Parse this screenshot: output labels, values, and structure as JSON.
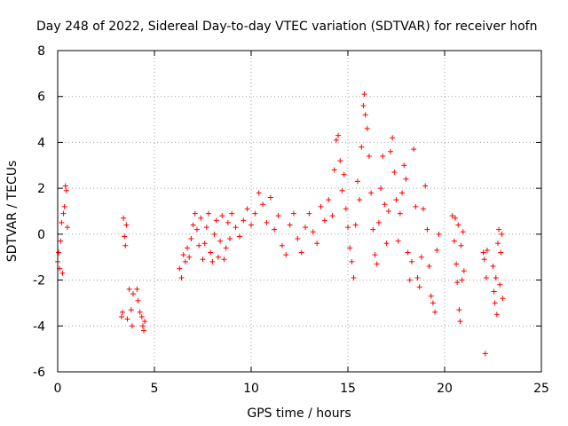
{
  "chart_data": {
    "type": "scatter",
    "title": "Day 248 of 2022, Sidereal Day-to-day VTEC variation (SDTVAR) for receiver hofn",
    "xlabel": "GPS time / hours",
    "ylabel": "SDTVAR / TECUs",
    "xlim": [
      0,
      25
    ],
    "ylim": [
      -6,
      8
    ],
    "xticks": [
      0,
      5,
      10,
      15,
      20,
      25
    ],
    "yticks": [
      -6,
      -4,
      -2,
      0,
      2,
      4,
      6,
      8
    ],
    "grid": true,
    "marker": "+",
    "marker_color": "#ff0000",
    "series": [
      {
        "name": "SDTVAR",
        "points": [
          [
            0.0,
            -1.2
          ],
          [
            0.05,
            -0.8
          ],
          [
            0.1,
            -1.5
          ],
          [
            0.15,
            -0.3
          ],
          [
            0.2,
            0.5
          ],
          [
            0.25,
            -1.7
          ],
          [
            0.3,
            0.9
          ],
          [
            0.35,
            1.2
          ],
          [
            0.4,
            2.1
          ],
          [
            0.45,
            1.9
          ],
          [
            0.5,
            0.3
          ],
          [
            3.3,
            -3.6
          ],
          [
            3.35,
            -3.4
          ],
          [
            3.4,
            0.7
          ],
          [
            3.45,
            -0.1
          ],
          [
            3.5,
            -0.5
          ],
          [
            3.55,
            0.4
          ],
          [
            3.6,
            -3.7
          ],
          [
            3.7,
            -2.4
          ],
          [
            3.8,
            -3.3
          ],
          [
            3.85,
            -4.0
          ],
          [
            3.9,
            -2.6
          ],
          [
            4.1,
            -2.4
          ],
          [
            4.15,
            -2.9
          ],
          [
            4.25,
            -3.4
          ],
          [
            4.35,
            -3.6
          ],
          [
            4.4,
            -4.0
          ],
          [
            4.45,
            -4.2
          ],
          [
            4.5,
            -3.8
          ],
          [
            6.3,
            -1.5
          ],
          [
            6.4,
            -1.9
          ],
          [
            6.5,
            -0.9
          ],
          [
            6.6,
            -1.2
          ],
          [
            6.7,
            -0.6
          ],
          [
            6.8,
            -1.0
          ],
          [
            6.9,
            -0.2
          ],
          [
            7.0,
            0.4
          ],
          [
            7.1,
            0.9
          ],
          [
            7.2,
            0.2
          ],
          [
            7.3,
            -0.5
          ],
          [
            7.4,
            0.7
          ],
          [
            7.5,
            -1.1
          ],
          [
            7.6,
            -0.4
          ],
          [
            7.7,
            0.3
          ],
          [
            7.8,
            0.9
          ],
          [
            7.9,
            -0.8
          ],
          [
            8.0,
            -1.2
          ],
          [
            8.1,
            0.0
          ],
          [
            8.2,
            0.6
          ],
          [
            8.3,
            -1.0
          ],
          [
            8.4,
            -0.3
          ],
          [
            8.5,
            0.8
          ],
          [
            8.6,
            -1.1
          ],
          [
            8.7,
            -0.6
          ],
          [
            8.8,
            0.5
          ],
          [
            8.9,
            -0.2
          ],
          [
            9.0,
            0.9
          ],
          [
            9.2,
            0.3
          ],
          [
            9.4,
            -0.1
          ],
          [
            9.6,
            0.6
          ],
          [
            9.8,
            1.1
          ],
          [
            10.0,
            0.4
          ],
          [
            10.2,
            0.9
          ],
          [
            10.4,
            1.8
          ],
          [
            10.6,
            1.3
          ],
          [
            10.8,
            0.5
          ],
          [
            11.0,
            1.6
          ],
          [
            11.2,
            0.2
          ],
          [
            11.4,
            0.8
          ],
          [
            11.6,
            -0.5
          ],
          [
            11.8,
            -0.9
          ],
          [
            12.0,
            0.4
          ],
          [
            12.2,
            0.9
          ],
          [
            12.4,
            -0.2
          ],
          [
            12.6,
            -0.8
          ],
          [
            12.8,
            0.3
          ],
          [
            13.0,
            0.9
          ],
          [
            13.2,
            0.1
          ],
          [
            13.4,
            -0.4
          ],
          [
            13.6,
            1.2
          ],
          [
            13.8,
            0.6
          ],
          [
            14.0,
            1.5
          ],
          [
            14.2,
            0.8
          ],
          [
            14.3,
            2.8
          ],
          [
            14.4,
            4.1
          ],
          [
            14.5,
            4.3
          ],
          [
            14.6,
            3.2
          ],
          [
            14.7,
            1.9
          ],
          [
            14.8,
            2.6
          ],
          [
            14.9,
            1.1
          ],
          [
            15.0,
            0.3
          ],
          [
            15.1,
            -0.6
          ],
          [
            15.2,
            -1.2
          ],
          [
            15.3,
            -1.9
          ],
          [
            15.4,
            0.4
          ],
          [
            15.5,
            2.3
          ],
          [
            15.6,
            1.5
          ],
          [
            15.7,
            3.8
          ],
          [
            15.8,
            5.6
          ],
          [
            15.85,
            6.1
          ],
          [
            15.9,
            5.2
          ],
          [
            16.0,
            4.6
          ],
          [
            16.1,
            3.4
          ],
          [
            16.2,
            1.8
          ],
          [
            16.3,
            0.2
          ],
          [
            16.4,
            -0.9
          ],
          [
            16.5,
            -1.3
          ],
          [
            16.6,
            0.5
          ],
          [
            16.7,
            2.0
          ],
          [
            16.8,
            3.4
          ],
          [
            16.9,
            1.3
          ],
          [
            17.0,
            -0.4
          ],
          [
            17.1,
            1.0
          ],
          [
            17.2,
            3.6
          ],
          [
            17.3,
            4.2
          ],
          [
            17.4,
            2.7
          ],
          [
            17.5,
            1.5
          ],
          [
            17.6,
            -0.3
          ],
          [
            17.7,
            0.9
          ],
          [
            17.8,
            1.8
          ],
          [
            17.9,
            3.0
          ],
          [
            18.0,
            2.4
          ],
          [
            18.1,
            -0.8
          ],
          [
            18.2,
            -2.0
          ],
          [
            18.3,
            -1.2
          ],
          [
            18.4,
            3.7
          ],
          [
            18.5,
            1.2
          ],
          [
            18.6,
            -1.9
          ],
          [
            18.7,
            -2.3
          ],
          [
            18.8,
            -1.0
          ],
          [
            18.9,
            1.1
          ],
          [
            19.0,
            2.1
          ],
          [
            19.1,
            0.2
          ],
          [
            19.2,
            -1.4
          ],
          [
            19.3,
            -2.7
          ],
          [
            19.4,
            -3.0
          ],
          [
            19.5,
            -3.4
          ],
          [
            19.6,
            -0.7
          ],
          [
            19.7,
            0.0
          ],
          [
            20.4,
            0.8
          ],
          [
            20.5,
            -0.3
          ],
          [
            20.55,
            0.7
          ],
          [
            20.6,
            -1.3
          ],
          [
            20.65,
            -2.1
          ],
          [
            20.7,
            0.4
          ],
          [
            20.75,
            -3.3
          ],
          [
            20.8,
            -3.8
          ],
          [
            20.85,
            -0.5
          ],
          [
            20.9,
            -2.0
          ],
          [
            20.95,
            0.1
          ],
          [
            21.0,
            -1.6
          ],
          [
            22.0,
            -0.8
          ],
          [
            22.05,
            -1.1
          ],
          [
            22.1,
            -5.2
          ],
          [
            22.15,
            -1.9
          ],
          [
            22.2,
            -0.7
          ],
          [
            22.5,
            -1.4
          ],
          [
            22.55,
            -2.5
          ],
          [
            22.6,
            -3.0
          ],
          [
            22.65,
            -1.9
          ],
          [
            22.7,
            -3.5
          ],
          [
            22.75,
            -0.4
          ],
          [
            22.8,
            0.2
          ],
          [
            22.85,
            -2.2
          ],
          [
            22.9,
            -0.8
          ],
          [
            22.95,
            0.0
          ],
          [
            23.0,
            -2.8
          ]
        ]
      }
    ]
  }
}
